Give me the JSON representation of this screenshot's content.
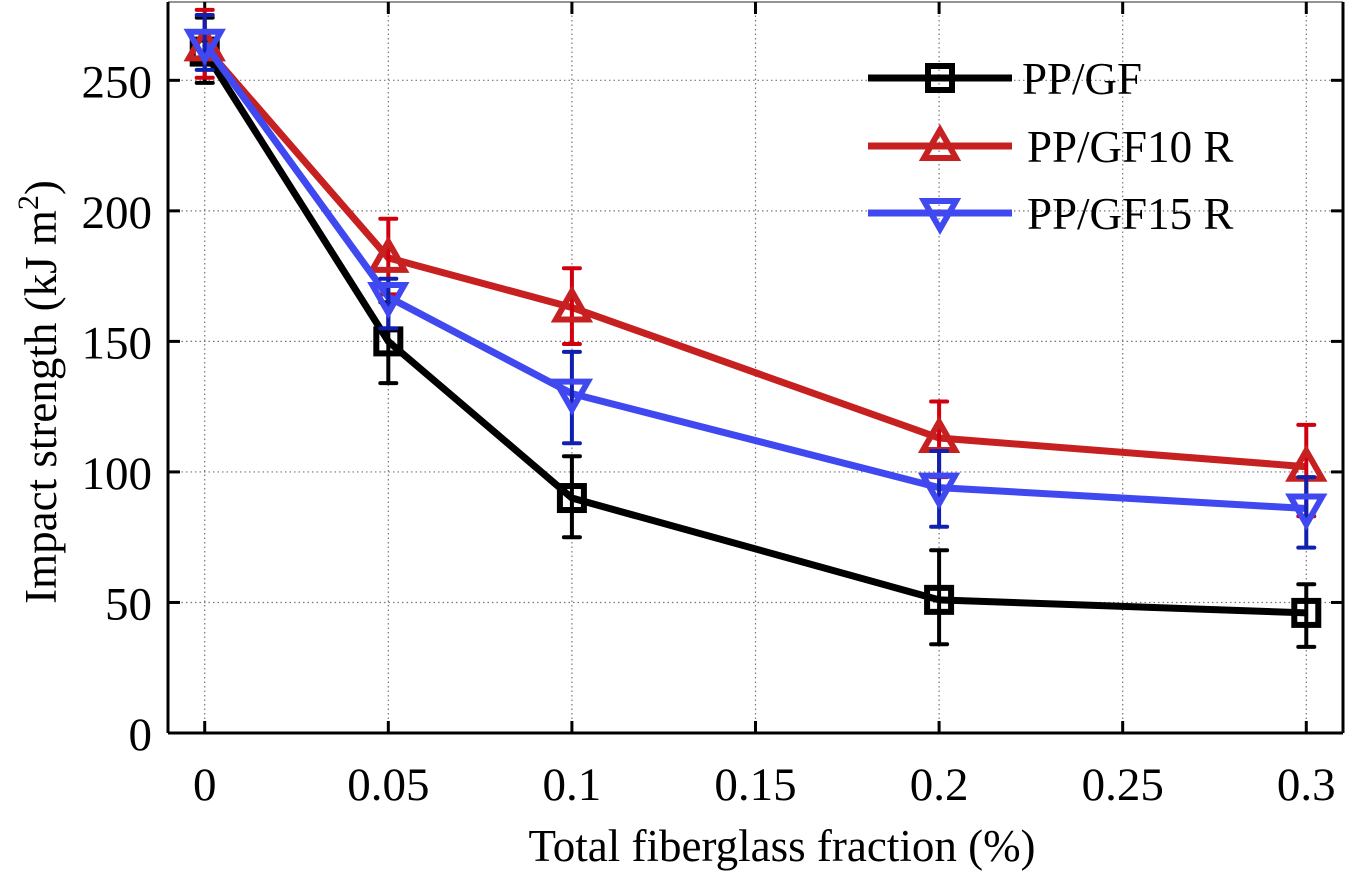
{
  "chart_data": {
    "type": "line",
    "title": "",
    "xlabel": "Total fiberglass fraction (%)",
    "ylabel": {
      "main": "Impact strength (kJ m",
      "superscript": "2",
      "close": ")"
    },
    "xlim": [
      -0.01,
      0.31
    ],
    "ylim": [
      0,
      280
    ],
    "xticks": [
      0,
      0.05,
      0.1,
      0.15,
      0.2,
      0.25,
      0.3
    ],
    "xtick_labels": [
      "0",
      "0.05",
      "0.1",
      "0.15",
      "0.2",
      "0.25",
      "0.3"
    ],
    "yticks": [
      0,
      50,
      100,
      150,
      200,
      250
    ],
    "ytick_labels": [
      "0",
      "50",
      "100",
      "150",
      "200",
      "250"
    ],
    "grid": true,
    "legend_position": "top-right",
    "x": [
      0,
      0.05,
      0.1,
      0.2,
      0.3
    ],
    "series": [
      {
        "name": "PP/GF",
        "color": "#000000",
        "error_color": "#000000",
        "marker": "square",
        "values": [
          261,
          150,
          90,
          51,
          46
        ],
        "error_low": [
          249,
          134,
          75,
          34,
          33
        ],
        "error_high": [
          274,
          165,
          106,
          70,
          57
        ]
      },
      {
        "name": "PP/GF10 R",
        "color": "#C62020",
        "error_color": "#D0000F",
        "marker": "triangle-up",
        "values": [
          263,
          182,
          163,
          113,
          102
        ],
        "error_low": [
          251,
          168,
          149,
          98,
          83
        ],
        "error_high": [
          277,
          197,
          178,
          127,
          118
        ]
      },
      {
        "name": "PP/GF15 R",
        "color": "#4048F0",
        "error_color": "#1020B0",
        "marker": "triangle-down",
        "values": [
          264,
          167,
          130,
          94,
          86
        ],
        "error_low": [
          254,
          155,
          111,
          79,
          71
        ],
        "error_high": [
          275,
          174,
          146,
          108,
          98
        ]
      }
    ]
  }
}
